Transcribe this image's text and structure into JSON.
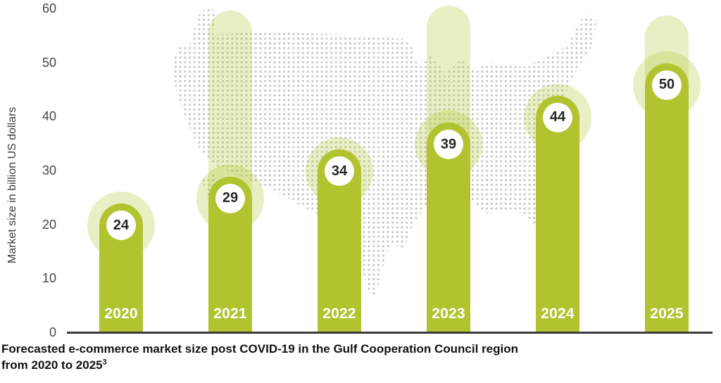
{
  "chart_data": {
    "type": "bar",
    "categories": [
      "2020",
      "2021",
      "2022",
      "2023",
      "2024",
      "2025"
    ],
    "values": [
      24,
      29,
      34,
      39,
      44,
      50
    ],
    "title": "Forecasted e-commerce market size post COVID-19 in the Gulf Cooperation Council region from 2020 to 2025",
    "title_footnote_superscript": "3",
    "xlabel": "",
    "ylabel": "Market size in billion US dollars",
    "ylim": [
      0,
      60
    ],
    "yticks": [
      0,
      10,
      20,
      30,
      40,
      50,
      60
    ],
    "grid": false,
    "legend": null,
    "background_decoration": "dotted-usa-map",
    "ghost_bars": {
      "2021": 59.8,
      "2023": 60.7,
      "2025": 58.8
    },
    "colors": {
      "bar": "#b1c42f",
      "halo_overlay": "rgba(177,196,44,0.28)",
      "map_dots": "#c8c8c8",
      "axis_line": "#3b3b3b",
      "tick_text": "#454545",
      "value_text": "#272727",
      "year_text": "#ffffff",
      "caption_text": "#111111",
      "value_circle_fill": "#ffffff"
    }
  },
  "caption": {
    "line1": "Forecasted e-commerce market size post COVID-19 in the Gulf Cooperation Council region",
    "line2": "from 2020 to 2025",
    "superscript": "3"
  }
}
